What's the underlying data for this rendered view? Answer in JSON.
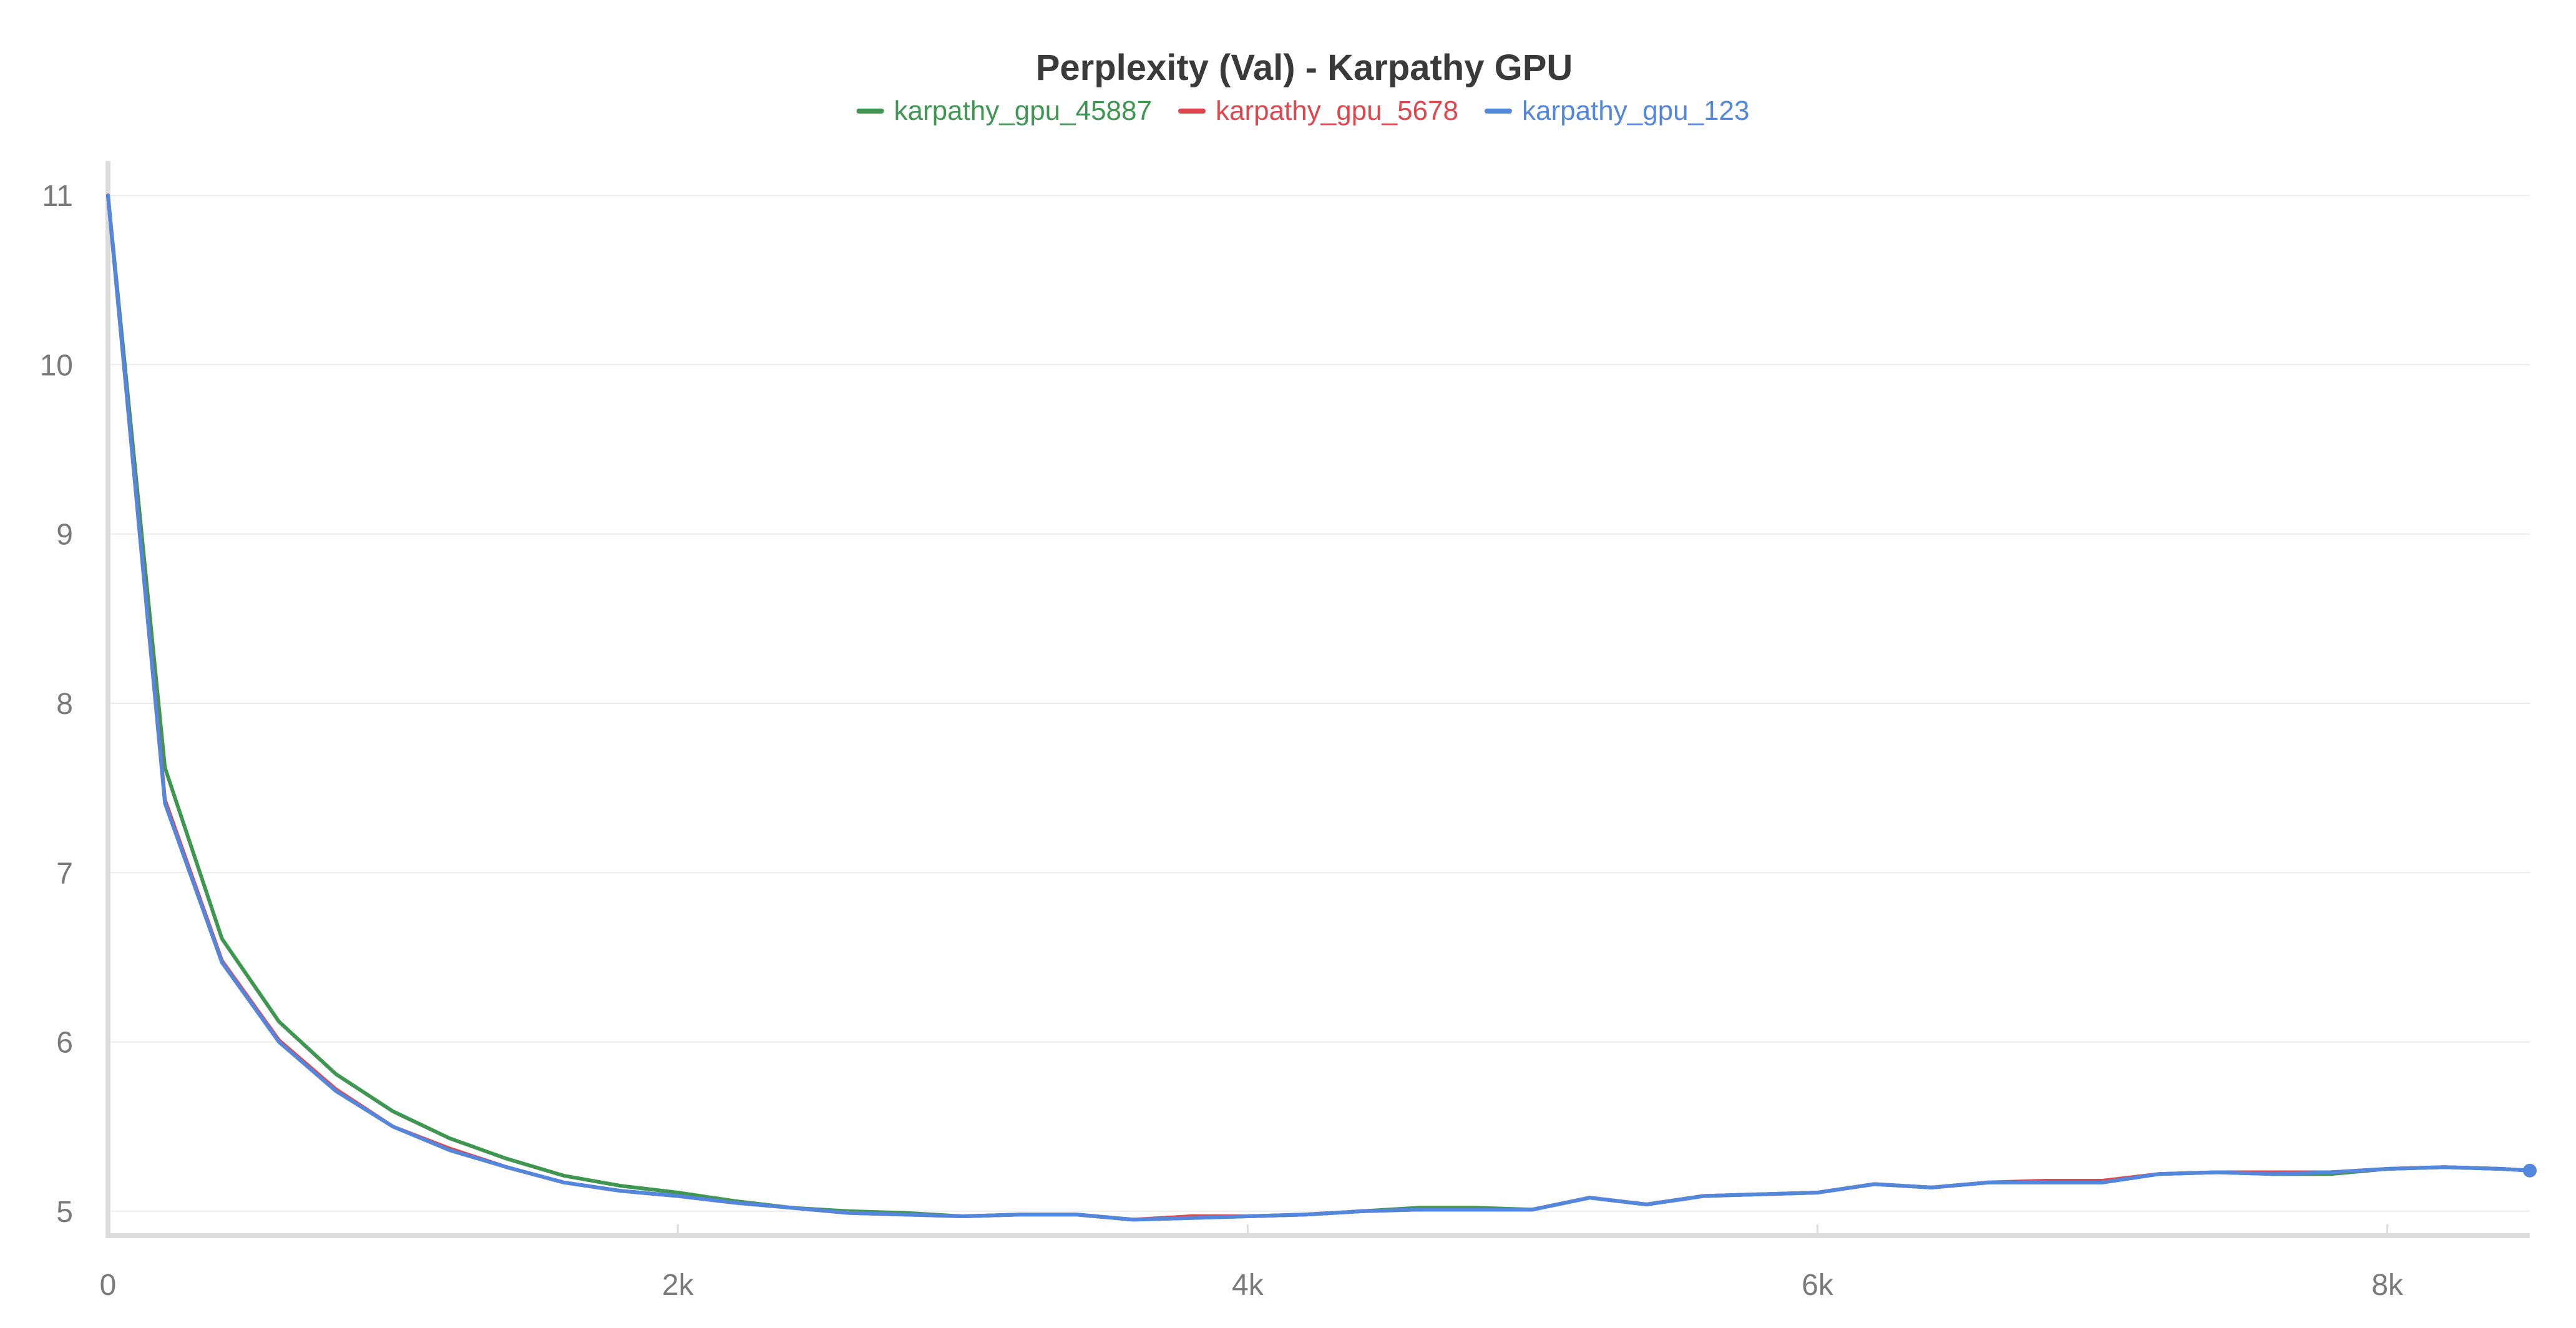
{
  "chart_data": {
    "type": "line",
    "title": "Perplexity (Val) - Karpathy GPU",
    "xlabel": "",
    "ylabel": "",
    "xlim": [
      0,
      8500
    ],
    "ylim": [
      4.9,
      11.1
    ],
    "x_ticks": [
      0,
      2000,
      4000,
      6000,
      8000
    ],
    "x_tick_labels": [
      "0",
      "2k",
      "4k",
      "6k",
      "8k"
    ],
    "y_ticks": [
      5,
      6,
      7,
      8,
      9,
      10,
      11
    ],
    "y_tick_labels": [
      "5",
      "6",
      "7",
      "8",
      "9",
      "10",
      "11"
    ],
    "grid": true,
    "legend_position": "top-center",
    "x": [
      0,
      200,
      400,
      600,
      800,
      1000,
      1200,
      1400,
      1600,
      1800,
      2000,
      2200,
      2400,
      2600,
      2800,
      3000,
      3200,
      3400,
      3600,
      3800,
      4000,
      4200,
      4400,
      4600,
      4800,
      5000,
      5200,
      5400,
      5600,
      5800,
      6000,
      6200,
      6400,
      6600,
      6800,
      7000,
      7200,
      7400,
      7600,
      7800,
      8000,
      8200,
      8400,
      8500
    ],
    "series": [
      {
        "name": "karpathy_gpu_45887",
        "color": "#3e9651",
        "values": [
          11.0,
          7.62,
          6.61,
          6.12,
          5.81,
          5.59,
          5.43,
          5.31,
          5.21,
          5.15,
          5.11,
          5.06,
          5.02,
          5.0,
          4.99,
          4.97,
          4.98,
          4.98,
          4.95,
          4.96,
          4.97,
          4.98,
          5.0,
          5.02,
          5.02,
          5.01,
          5.08,
          5.04,
          5.09,
          5.1,
          5.11,
          5.16,
          5.14,
          5.17,
          5.17,
          5.17,
          5.22,
          5.23,
          5.22,
          5.22,
          5.25,
          5.26,
          5.25,
          5.24
        ]
      },
      {
        "name": "karpathy_gpu_5678",
        "color": "#e0474c",
        "values": [
          11.0,
          7.43,
          6.48,
          6.01,
          5.72,
          5.5,
          5.37,
          5.26,
          5.17,
          5.12,
          5.09,
          5.05,
          5.02,
          4.99,
          4.98,
          4.97,
          4.98,
          4.98,
          4.95,
          4.97,
          4.97,
          4.98,
          5.0,
          5.01,
          5.01,
          5.01,
          5.08,
          5.04,
          5.09,
          5.1,
          5.11,
          5.16,
          5.14,
          5.17,
          5.18,
          5.18,
          5.22,
          5.23,
          5.23,
          5.23,
          5.25,
          5.26,
          5.25,
          5.24
        ]
      },
      {
        "name": "karpathy_gpu_123",
        "color": "#5387dd",
        "values": [
          11.0,
          7.41,
          6.47,
          6.0,
          5.71,
          5.5,
          5.36,
          5.26,
          5.17,
          5.12,
          5.09,
          5.05,
          5.02,
          4.99,
          4.98,
          4.97,
          4.98,
          4.98,
          4.95,
          4.96,
          4.97,
          4.98,
          5.0,
          5.01,
          5.01,
          5.01,
          5.08,
          5.04,
          5.09,
          5.1,
          5.11,
          5.16,
          5.14,
          5.17,
          5.17,
          5.17,
          5.22,
          5.23,
          5.22,
          5.23,
          5.25,
          5.26,
          5.25,
          5.24
        ]
      }
    ]
  }
}
